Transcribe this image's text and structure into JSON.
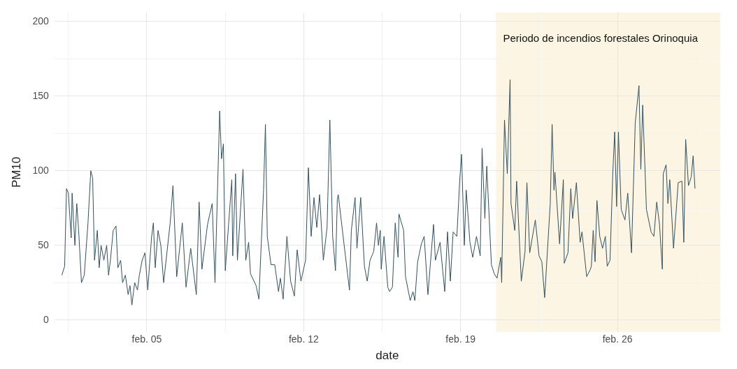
{
  "chart_data": {
    "type": "line",
    "xlabel": "date",
    "ylabel": "PM10",
    "xlim": [
      "--01-31T21:00",
      "--03-01T14:00"
    ],
    "xticks": [
      {
        "value": "--02-01T12:00",
        "label": null
      },
      {
        "value": "--02-05",
        "label": "feb. 05"
      },
      {
        "value": "--02-08T12:00",
        "label": null
      },
      {
        "value": "--02-12",
        "label": "feb. 12"
      },
      {
        "value": "--02-15T12:00",
        "label": null
      },
      {
        "value": "--02-19",
        "label": "feb. 19"
      },
      {
        "value": "--02-22T12:00",
        "label": null
      },
      {
        "value": "--02-26",
        "label": "feb. 26"
      },
      {
        "value": "--02-29T12:00",
        "label": null
      }
    ],
    "ylim": [
      -8,
      206
    ],
    "yticks": [
      0,
      {
        "value": 25,
        "label": null
      },
      50,
      {
        "value": 75,
        "label": null
      },
      100,
      {
        "value": 125,
        "label": null
      },
      150,
      {
        "value": 175,
        "label": null
      },
      200
    ],
    "grid": true,
    "legend": false,
    "marker": "none",
    "line_style": "solid",
    "bands": [
      {
        "axis": "x",
        "from": "--02-20T14:00",
        "to": "--03-01T14:00",
        "label": "Periodo de incendios forestales Orinoquia",
        "color": "#fcf5e3"
      }
    ],
    "series": [
      {
        "color": "#34505f",
        "x": [
          "--02-01T05:00",
          "--02-01T08:00",
          "--02-01T10:00",
          "--02-01T12:00",
          "--02-01T15:00",
          "--02-01T16:00",
          "--02-01T19:00",
          "--02-01T21:00",
          "--02-01T23:00",
          "--02-02T02:00",
          "--02-02T05:00",
          "--02-02T09:00",
          "--02-02T12:00",
          "--02-02T14:00",
          "--02-02T16:00",
          "--02-02T19:00",
          "--02-02T21:00",
          "--02-02T23:00",
          "--02-03T02:00",
          "--02-03T05:00",
          "--02-03T07:00",
          "--02-03T09:00",
          "--02-03T12:00",
          "--02-03T15:00",
          "--02-03T17:00",
          "--02-03T20:00",
          "--02-03T22:00",
          "--02-04T01:00",
          "--02-04T04:00",
          "--02-04T06:00",
          "--02-04T08:00",
          "--02-04T11:00",
          "--02-04T14:00",
          "--02-04T16:00",
          "--02-04T19:00",
          "--02-04T22:00",
          "--02-05T01:00",
          "--02-05T05:00",
          "--02-05T07:00",
          "--02-05T09:00",
          "--02-05T12:00",
          "--02-05T15:00",
          "--02-05T18:00",
          "--02-06T01:00",
          "--02-06T04:00",
          "--02-06T08:00",
          "--02-06T14:00",
          "--02-06T18:00",
          "--02-06T23:00",
          "--02-07T05:00",
          "--02-07T08:00",
          "--02-07T11:00",
          "--02-07T17:00",
          "--02-07T22:00",
          "--02-08T01:00",
          "--02-08T06:00",
          "--02-08T08:00",
          "--02-08T10:00",
          "--02-08T12:00",
          "--02-08T19:00",
          "--02-08T20:00",
          "--02-08T23:00",
          "--02-09T01:00",
          "--02-09T07:00",
          "--02-09T10:00",
          "--02-09T13:00",
          "--02-09T15:00",
          "--02-09T21:00",
          "--02-10T00:00",
          "--02-10T05:00",
          "--02-10T07:00",
          "--02-10T09:00",
          "--02-10T13:00",
          "--02-10T17:00",
          "--02-10T21:00",
          "--02-10T23:00",
          "--02-11T02:00",
          "--02-11T06:00",
          "--02-11T10:00",
          "--02-11T14:00",
          "--02-11T17:00",
          "--02-11T21:00",
          "--02-12T02:00",
          "--02-12T05:00",
          "--02-12T08:00",
          "--02-12T11:00",
          "--02-12T14:00",
          "--02-12T17:00",
          "--02-12T21:00",
          "--02-13T01:00",
          "--02-13T04:00",
          "--02-13T07:00",
          "--02-13T10:00",
          "--02-13T12:00",
          "--02-13T13:00",
          "--02-13T18:00",
          "--02-14T01:00",
          "--02-14T03:00",
          "--02-14T07:00",
          "--02-14T09:00",
          "--02-14T13:00",
          "--02-14T17:00",
          "--02-14T20:00",
          "--02-14T23:00",
          "--02-15T03:00",
          "--02-15T06:00",
          "--02-15T08:00",
          "--02-15T10:00",
          "--02-15T11:00",
          "--02-15T14:00",
          "--02-15T18:00",
          "--02-15T20:00",
          "--02-15T23:00",
          "--02-16T02:00",
          "--02-16T05:00",
          "--02-16T06:00",
          "--02-16T11:00",
          "--02-16T13:00",
          "--02-16T18:00",
          "--02-16T21:00",
          "--02-16T23:00",
          "--02-17T02:00",
          "--02-17T06:00",
          "--02-17T09:00",
          "--02-17T13:00",
          "--02-17T19:00",
          "--02-17T21:00",
          "--02-18T02:00",
          "--02-18T07:00",
          "--02-18T10:00",
          "--02-18T13:00",
          "--02-18T16:00",
          "--02-18T20:00",
          "--02-18T23:00",
          "--02-19T01:00",
          "--02-19T04:00",
          "--02-19T06:00",
          "--02-19T10:00",
          "--02-19T13:00",
          "--02-19T17:00",
          "--02-19T21:00",
          "--02-19T23:00",
          "--02-20T02:00",
          "--02-20T04:00",
          "--02-20T09:00",
          "--02-20T12:00",
          "--02-20T15:00",
          "--02-20T19:00",
          "--02-20T20:00",
          "--02-20T23:00",
          "--02-21T02:00",
          "--02-21T05:00",
          "--02-21T06:00",
          "--02-21T10:00",
          "--02-21T12:00",
          "--02-21T17:00",
          "--02-21T21:00",
          "--02-21T23:00",
          "--02-22T02:00",
          "--02-22T08:00",
          "--02-22T12:00",
          "--02-22T15:00",
          "--02-22T18:00",
          "--02-23T00:00",
          "--02-23T02:00",
          "--02-23T04:00",
          "--02-23T05:00",
          "--02-23T10:00",
          "--02-23T14:00",
          "--02-23T15:00",
          "--02-23T19:00",
          "--02-23T22:00",
          "--02-24T00:00",
          "--02-24T04:00",
          "--02-24T08:00",
          "--02-24T10:00",
          "--02-24T15:00",
          "--02-24T19:00",
          "--02-24T20:00",
          "--02-24T22:00",
          "--02-25T00:00",
          "--02-25T02:00",
          "--02-25T05:00",
          "--02-25T08:00",
          "--02-25T11:00",
          "--02-25T13:00",
          "--02-25T16:00",
          "--02-25T19:00",
          "--02-25T21:00",
          "--02-25T23:00",
          "--02-26T01:00",
          "--02-26T04:00",
          "--02-26T08:00",
          "--02-26T11:00",
          "--02-26T15:00",
          "--02-26T19:00",
          "--02-26T23:00",
          "--02-27T01:00",
          "--02-27T03:00",
          "--02-27T07:00",
          "--02-27T12:00",
          "--02-27T15:00",
          "--02-27T18:00",
          "--02-27T21:00",
          "--02-28T00:00",
          "--02-28T01:00",
          "--02-28T04:00",
          "--02-28T06:00",
          "--02-28T08:00",
          "--02-28T12:00",
          "--02-28T17:00",
          "--02-28T21:00",
          "--02-28T23:00",
          "--02-29T01:00",
          "--02-29T04:00",
          "--02-29T07:00",
          "--02-29T09:00",
          "--02-29T11:00"
        ],
        "values": [
          30,
          36,
          88,
          85,
          55,
          85,
          50,
          78,
          60,
          25,
          30,
          65,
          100,
          95,
          40,
          60,
          35,
          50,
          40,
          50,
          30,
          40,
          60,
          63,
          35,
          40,
          25,
          30,
          17,
          23,
          10,
          25,
          20,
          30,
          40,
          45,
          20,
          55,
          65,
          35,
          60,
          50,
          25,
          65,
          90,
          29,
          65,
          22,
          48,
          17,
          79,
          34,
          64,
          78,
          25,
          140,
          108,
          118,
          33,
          94,
          43,
          98,
          40,
          101,
          40,
          52,
          31,
          23,
          14,
          87,
          131,
          56,
          37,
          37,
          19,
          28,
          14,
          56,
          26,
          16,
          47,
          26,
          40,
          102,
          56,
          82,
          62,
          84,
          40,
          62,
          134,
          56,
          33,
          81,
          84,
          57,
          20,
          60,
          82,
          48,
          82,
          36,
          26,
          40,
          46,
          65,
          50,
          60,
          34,
          56,
          22,
          19,
          22,
          65,
          42,
          71,
          60,
          29,
          13,
          19,
          13,
          39,
          51,
          56,
          17,
          64,
          40,
          52,
          19,
          59,
          26,
          59,
          56,
          93,
          111,
          50,
          87,
          52,
          42,
          56,
          43,
          115,
          68,
          103,
          37,
          31,
          28,
          42,
          25,
          134,
          98,
          161,
          78,
          60,
          93,
          26,
          46,
          92,
          45,
          67,
          43,
          39,
          15,
          78,
          131,
          87,
          99,
          51,
          94,
          38,
          45,
          88,
          68,
          92,
          52,
          59,
          29,
          34,
          36,
          60,
          39,
          80,
          56,
          48,
          56,
          36,
          40,
          99,
          126,
          76,
          126,
          74,
          67,
          85,
          45,
          132,
          157,
          101,
          144,
          74,
          59,
          56,
          79,
          64,
          34,
          98,
          104,
          78,
          94,
          48,
          92,
          93,
          52,
          121,
          90,
          96,
          110,
          88
        ]
      }
    ]
  }
}
